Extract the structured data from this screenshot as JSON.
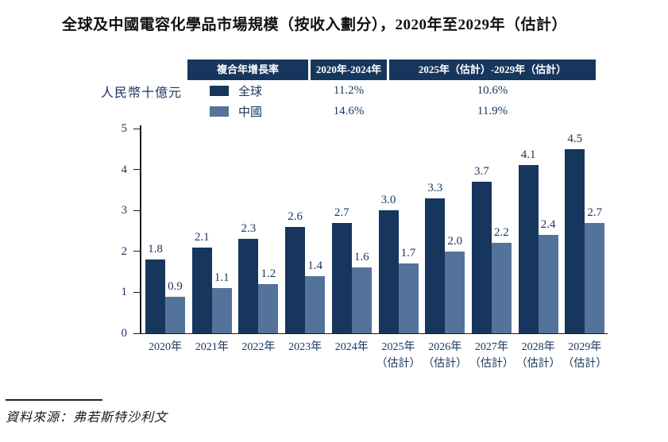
{
  "title": "全球及中國電容化學品市場規模（按收入劃分），2020年至2029年（估計）",
  "y_axis_unit": "人民幣十億元",
  "legend_table": {
    "header_bg": "#17365D",
    "headers": [
      "複合年增長率",
      "2020年-2024年",
      "2025年（估計）-2029年（估計）"
    ],
    "rows": [
      {
        "label": "全球",
        "values": [
          "11.2%",
          "10.6%"
        ]
      },
      {
        "label": "中國",
        "values": [
          "14.6%",
          "11.9%"
        ]
      }
    ]
  },
  "source": "資料來源：弗若斯特沙利文",
  "chart_data": {
    "type": "bar",
    "title": "全球及中國電容化學品市場規模（按收入劃分），2020年至2029年（估計）",
    "xlabel": "",
    "ylabel": "人民幣十億元",
    "ylim": [
      0,
      5
    ],
    "yticks": [
      0,
      1,
      2,
      3,
      4,
      5
    ],
    "grid": false,
    "legend_position": "top",
    "categories": [
      {
        "year": "2020年",
        "note": ""
      },
      {
        "year": "2021年",
        "note": ""
      },
      {
        "year": "2022年",
        "note": ""
      },
      {
        "year": "2023年",
        "note": ""
      },
      {
        "year": "2024年",
        "note": ""
      },
      {
        "year": "2025年",
        "note": "（估計）"
      },
      {
        "year": "2026年",
        "note": "（估計）"
      },
      {
        "year": "2027年",
        "note": "（估計）"
      },
      {
        "year": "2028年",
        "note": "（估計）"
      },
      {
        "year": "2029年",
        "note": "（估計）"
      }
    ],
    "series": [
      {
        "name": "全球",
        "color": "#17365D",
        "values": [
          1.8,
          2.1,
          2.3,
          2.6,
          2.7,
          3.0,
          3.3,
          3.7,
          4.1,
          4.5
        ]
      },
      {
        "name": "中國",
        "color": "#54739A",
        "values": [
          0.9,
          1.1,
          1.2,
          1.4,
          1.6,
          1.7,
          2.0,
          2.2,
          2.4,
          2.7
        ]
      }
    ],
    "value_label_decimals": 1,
    "cagr": {
      "periods": [
        "2020年-2024年",
        "2025年（估計）-2029年（估計）"
      ],
      "全球": [
        "11.2%",
        "10.6%"
      ],
      "中國": [
        "14.6%",
        "11.9%"
      ]
    }
  }
}
